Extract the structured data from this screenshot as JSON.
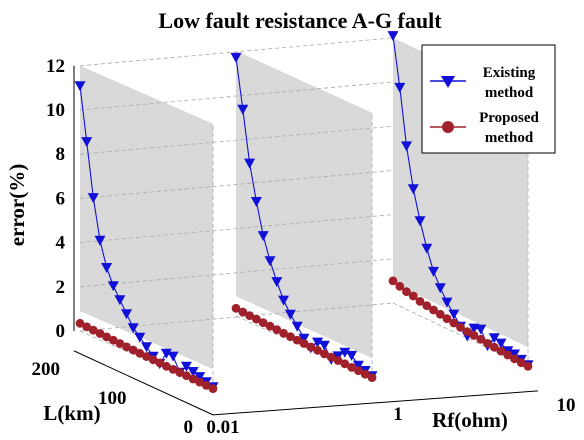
{
  "chart_data": {
    "type": "line",
    "title": "Low fault resistance A-G fault",
    "zlabel": "error(%)",
    "ylabel": "L(km)",
    "xlabel": "Rf(ohm)",
    "z_ticks": [
      "0",
      "2",
      "4",
      "6",
      "8",
      "10",
      "12"
    ],
    "z_range": [
      0,
      12
    ],
    "l_ticks": [
      "200",
      "100",
      "0"
    ],
    "l_range": [
      0,
      200
    ],
    "rf_ticks": [
      "0.01",
      "1",
      "10"
    ],
    "grid": true,
    "legend_position": "top-right",
    "colors": {
      "existing": "#1010d8",
      "proposed": "#a0202c",
      "wall": "#d9d9d9"
    },
    "l_values": [
      200,
      190,
      180,
      170,
      160,
      150,
      140,
      130,
      120,
      110,
      100,
      90,
      80,
      70,
      60,
      50,
      40,
      30,
      20,
      10,
      0
    ],
    "series": [
      {
        "name": "Existing method",
        "marker": "triangle-down",
        "panels": [
          {
            "rf": "0.01",
            "values": [
              11.1,
              8.7,
              6.3,
              4.5,
              3.4,
              2.7,
              2.2,
              1.7,
              1.2,
              0.9,
              0.6,
              0.3,
              0.1,
              0.7,
              0.7,
              0.1,
              0.5,
              0.4,
              0.3,
              0.2,
              0.1
            ]
          },
          {
            "rf": "1",
            "values": [
              11.7,
              9.5,
              7.2,
              5.6,
              4.2,
              3.2,
              2.4,
              1.7,
              1.2,
              0.8,
              0.4,
              0.1,
              0.5,
              0.5,
              0.0,
              0.3,
              0.6,
              0.6,
              0.3,
              0.2,
              0.1
            ]
          },
          {
            "rf": "10",
            "values": [
              12.1,
              9.9,
              7.4,
              5.6,
              4.3,
              3.2,
              2.3,
              1.7,
              1.2,
              0.8,
              0.4,
              0.1,
              0.6,
              0.7,
              0.1,
              0.6,
              0.5,
              0.3,
              0.3,
              0.2,
              0.1
            ]
          }
        ]
      },
      {
        "name": "Proposed method",
        "marker": "circle",
        "panels": [
          {
            "rf": "0.01",
            "values": [
              0.35,
              0.32,
              0.3,
              0.28,
              0.26,
              0.24,
              0.22,
              0.2,
              0.19,
              0.17,
              0.16,
              0.14,
              0.13,
              0.11,
              0.1,
              0.09,
              0.08,
              0.06,
              0.05,
              0.03,
              0.02
            ]
          },
          {
            "rf": "1",
            "values": [
              0.35,
              0.32,
              0.3,
              0.28,
              0.26,
              0.24,
              0.22,
              0.2,
              0.19,
              0.17,
              0.16,
              0.14,
              0.13,
              0.11,
              0.1,
              0.09,
              0.08,
              0.06,
              0.05,
              0.03,
              0.02
            ]
          },
          {
            "rf": "10",
            "values": [
              1.0,
              0.9,
              0.8,
              0.75,
              0.65,
              0.6,
              0.55,
              0.5,
              0.45,
              0.4,
              0.35,
              0.3,
              0.27,
              0.24,
              0.2,
              0.17,
              0.14,
              0.11,
              0.08,
              0.05,
              0.03
            ]
          }
        ]
      }
    ],
    "legend": {
      "existing_line1": "Existing",
      "existing_line2": "method",
      "proposed_line1": "Proposed",
      "proposed_line2": "method"
    }
  }
}
